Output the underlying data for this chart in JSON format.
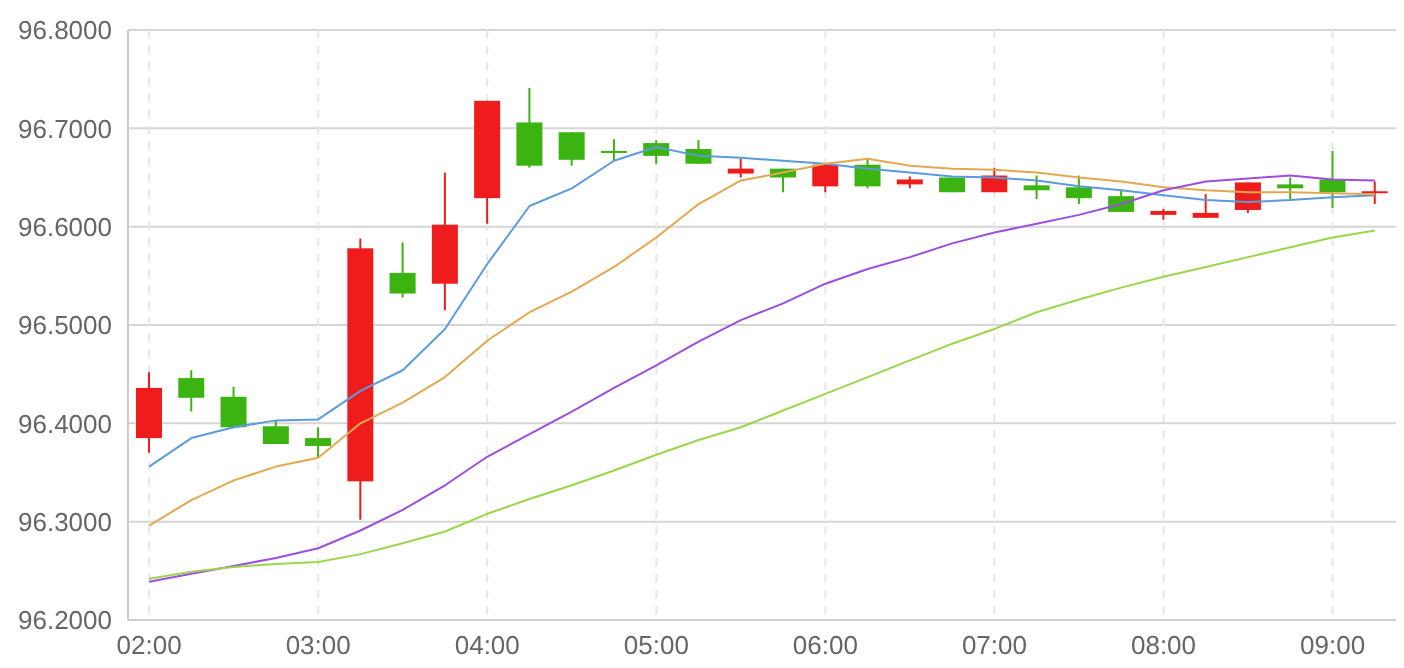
{
  "chart_data": {
    "type": "candlestick",
    "x": [
      2,
      2.25,
      2.5,
      2.75,
      3,
      3.25,
      3.5,
      3.75,
      4,
      4.25,
      4.5,
      4.75,
      5,
      5.25,
      5.5,
      5.75,
      6,
      6.25,
      6.5,
      6.75,
      7,
      7.25,
      7.5,
      7.75,
      8,
      8.25,
      8.5,
      8.75,
      9,
      9.25
    ],
    "ohlc": [
      [
        96.385,
        96.452,
        96.37,
        96.436
      ],
      [
        96.446,
        96.454,
        96.412,
        96.426
      ],
      [
        96.427,
        96.437,
        96.395,
        96.396
      ],
      [
        96.397,
        96.403,
        96.379,
        96.379
      ],
      [
        96.385,
        96.396,
        96.365,
        96.377
      ],
      [
        96.341,
        96.588,
        96.302,
        96.578
      ],
      [
        96.553,
        96.584,
        96.528,
        96.532
      ],
      [
        96.542,
        96.655,
        96.515,
        96.602
      ],
      [
        96.629,
        96.728,
        96.603,
        96.728
      ],
      [
        96.706,
        96.741,
        96.66,
        96.662
      ],
      [
        96.696,
        96.696,
        96.662,
        96.668
      ],
      [
        96.677,
        96.689,
        96.667,
        96.676
      ],
      [
        96.685,
        96.688,
        96.664,
        96.672
      ],
      [
        96.679,
        96.688,
        96.664,
        96.664
      ],
      [
        96.654,
        96.669,
        96.65,
        96.659
      ],
      [
        96.659,
        96.659,
        96.635,
        96.65
      ],
      [
        96.641,
        96.663,
        96.635,
        96.663
      ],
      [
        96.663,
        96.67,
        96.639,
        96.641
      ],
      [
        96.643,
        96.651,
        96.639,
        96.648
      ],
      [
        96.65,
        96.65,
        96.635,
        96.635
      ],
      [
        96.635,
        96.66,
        96.635,
        96.652
      ],
      [
        96.642,
        96.652,
        96.628,
        96.637
      ],
      [
        96.64,
        96.652,
        96.623,
        96.629
      ],
      [
        96.631,
        96.638,
        96.615,
        96.615
      ],
      [
        96.612,
        96.618,
        96.607,
        96.616
      ],
      [
        96.609,
        96.633,
        96.609,
        96.614
      ],
      [
        96.617,
        96.645,
        96.614,
        96.645
      ],
      [
        96.643,
        96.65,
        96.627,
        96.639
      ],
      [
        96.648,
        96.677,
        96.619,
        96.635
      ],
      [
        96.635,
        96.646,
        96.623,
        96.636
      ]
    ],
    "colors": [
      "#ee1c1c",
      "#3bb310",
      "#3bb310",
      "#3bb310",
      "#3bb310",
      "#ee1c1c",
      "#3bb310",
      "#ee1c1c",
      "#ee1c1c",
      "#3bb310",
      "#3bb310",
      "#3bb310",
      "#3bb310",
      "#3bb310",
      "#ee1c1c",
      "#3bb310",
      "#ee1c1c",
      "#3bb310",
      "#ee1c1c",
      "#3bb310",
      "#ee1c1c",
      "#3bb310",
      "#3bb310",
      "#3bb310",
      "#ee1c1c",
      "#ee1c1c",
      "#ee1c1c",
      "#3bb310",
      "#3bb310",
      "#ee1c1c"
    ],
    "series": [
      {
        "type": "line",
        "color": "#5b9bdb",
        "values": [
          96.356,
          96.385,
          96.396,
          96.403,
          96.404,
          96.433,
          96.454,
          96.496,
          96.562,
          96.621,
          96.639,
          96.667,
          96.681,
          96.672,
          96.67,
          96.667,
          96.664,
          96.659,
          96.655,
          96.651,
          96.65,
          96.647,
          96.641,
          96.637,
          96.632,
          96.627,
          96.625,
          96.627,
          96.63,
          96.632
        ]
      },
      {
        "type": "line",
        "color": "#e3a84f",
        "values": [
          96.296,
          96.322,
          96.342,
          96.356,
          96.365,
          96.4,
          96.421,
          96.447,
          96.484,
          96.513,
          96.534,
          96.559,
          96.589,
          96.623,
          96.647,
          96.655,
          96.664,
          96.669,
          96.662,
          96.659,
          96.658,
          96.655,
          96.65,
          96.646,
          96.64,
          96.637,
          96.635,
          96.635,
          96.634,
          96.633
        ]
      },
      {
        "type": "line",
        "color": "#9b4ee0",
        "values": [
          96.239,
          96.247,
          96.255,
          96.263,
          96.273,
          96.291,
          96.312,
          96.337,
          96.366,
          96.389,
          96.412,
          96.436,
          96.459,
          96.483,
          96.505,
          96.522,
          96.542,
          96.557,
          96.569,
          96.583,
          96.594,
          96.603,
          96.612,
          96.623,
          96.637,
          96.646,
          96.649,
          96.652,
          96.648,
          96.647
        ]
      },
      {
        "type": "line",
        "color": "#9bd64a",
        "values": [
          96.242,
          96.249,
          96.254,
          96.257,
          96.259,
          96.267,
          96.278,
          96.29,
          96.308,
          96.323,
          96.337,
          96.352,
          96.368,
          96.383,
          96.396,
          96.413,
          96.43,
          96.447,
          96.464,
          96.481,
          96.496,
          96.513,
          96.526,
          96.538,
          96.549,
          96.559,
          96.569,
          96.579,
          96.589,
          96.596
        ]
      }
    ],
    "xlim": [
      1.875,
      9.375
    ],
    "xticks": [
      {
        "value": 2,
        "label": "02:00"
      },
      {
        "value": 3,
        "label": "03:00"
      },
      {
        "value": 4,
        "label": "04:00"
      },
      {
        "value": 5,
        "label": "05:00"
      },
      {
        "value": 6,
        "label": "06:00"
      },
      {
        "value": 7,
        "label": "07:00"
      },
      {
        "value": 8,
        "label": "08:00"
      },
      {
        "value": 9,
        "label": "09:00"
      }
    ],
    "ylim": [
      96.2,
      96.8
    ],
    "yticks": [
      {
        "value": 96.2,
        "label": "96.2000"
      },
      {
        "value": 96.3,
        "label": "96.3000"
      },
      {
        "value": 96.4,
        "label": "96.4000"
      },
      {
        "value": 96.5,
        "label": "96.5000"
      },
      {
        "value": 96.6,
        "label": "96.6000"
      },
      {
        "value": 96.7,
        "label": "96.7000"
      },
      {
        "value": 96.8,
        "label": "96.8000"
      }
    ],
    "grid": true
  }
}
